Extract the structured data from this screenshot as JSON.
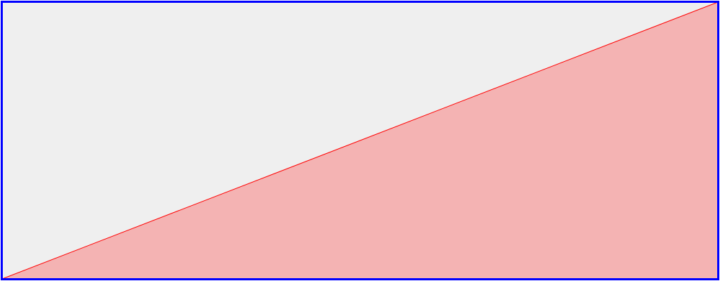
{
  "colors": {
    "border": "#0000ff",
    "background": "#efefef",
    "line": "#ff0000",
    "fill": "#f4b3b3"
  }
}
